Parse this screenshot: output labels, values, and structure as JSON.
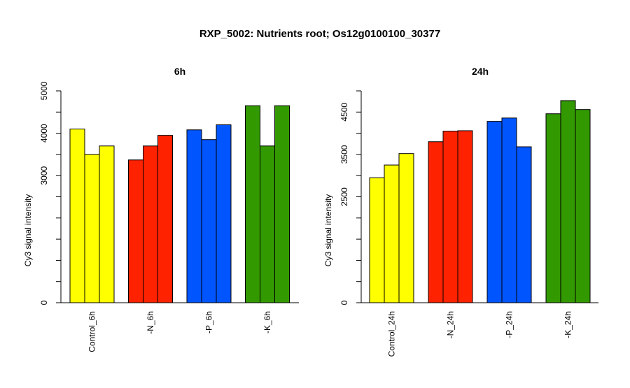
{
  "title": "RXP_5002: Nutrients root; Os12g0100100_30377",
  "chart_data": [
    {
      "type": "bar",
      "title": "6h",
      "ylabel": "Cy3 signal intensity",
      "ylim": [
        0,
        5000
      ],
      "yticks": [
        0,
        3000,
        4000,
        5000
      ],
      "categories": [
        "Control_6h",
        "-N_6h",
        "-P_6h",
        "-K_6h"
      ],
      "colors": [
        "#ffff00",
        "#ff2200",
        "#0055ff",
        "#339900"
      ],
      "groups": [
        {
          "category": "Control_6h",
          "values": [
            4100,
            3500,
            3700
          ]
        },
        {
          "category": "-N_6h",
          "values": [
            3370,
            3700,
            3950
          ]
        },
        {
          "category": "-P_6h",
          "values": [
            4080,
            3850,
            4200
          ]
        },
        {
          "category": "-K_6h",
          "values": [
            4650,
            3700,
            4650
          ]
        }
      ]
    },
    {
      "type": "bar",
      "title": "24h",
      "ylabel": "Cy3 signal intensity",
      "ylim": [
        0,
        5000
      ],
      "yticks": [
        0,
        2500,
        3500,
        4500
      ],
      "categories": [
        "Control_24h",
        "-N_24h",
        "-P_24h",
        "-K_24h"
      ],
      "colors": [
        "#ffff00",
        "#ff2200",
        "#0055ff",
        "#339900"
      ],
      "groups": [
        {
          "category": "Control_24h",
          "values": [
            2950,
            3250,
            3520
          ]
        },
        {
          "category": "-N_24h",
          "values": [
            3800,
            4050,
            4060
          ]
        },
        {
          "category": "-P_24h",
          "values": [
            4280,
            4360,
            3680
          ]
        },
        {
          "category": "-K_24h",
          "values": [
            4460,
            4770,
            4560
          ]
        }
      ]
    }
  ]
}
